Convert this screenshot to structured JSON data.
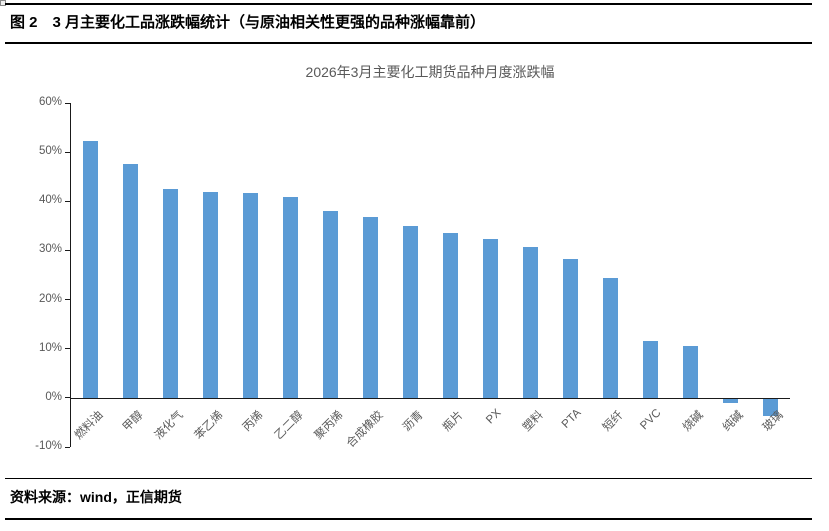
{
  "figure": {
    "caption": "图 2　3 月主要化工品涨跌幅统计（与原油相关性更强的品种涨幅靠前）",
    "source": "资料来源：wind，正信期货"
  },
  "chart_data": {
    "type": "bar",
    "title": "2026年3月主要化工期货品种月度涨跌幅",
    "categories": [
      "燃料油",
      "甲醇",
      "液化气",
      "苯乙烯",
      "丙烯",
      "乙二醇",
      "聚丙烯",
      "合成橡胶",
      "沥青",
      "瓶片",
      "PX",
      "塑料",
      "PTA",
      "短纤",
      "PVC",
      "烧碱",
      "纯碱",
      "玻璃"
    ],
    "values": [
      52.3,
      47.6,
      42.5,
      41.8,
      41.6,
      40.9,
      38.1,
      36.8,
      34.9,
      33.6,
      32.3,
      30.7,
      28.2,
      24.3,
      11.6,
      10.6,
      -0.8,
      -3.4
    ],
    "unit": "%",
    "xlabel": "",
    "ylabel": "",
    "ylim": [
      -10,
      60
    ],
    "ytick_step": 10,
    "ytick_labels": [
      "60%",
      "50%",
      "40%",
      "30%",
      "20%",
      "10%",
      "0%",
      "-10%"
    ],
    "bar_color": "#5B9BD5",
    "axis_color": "#1a1a1a",
    "label_color": "#595959",
    "grid": false,
    "legend": null,
    "x_label_rotation_deg": 45
  }
}
